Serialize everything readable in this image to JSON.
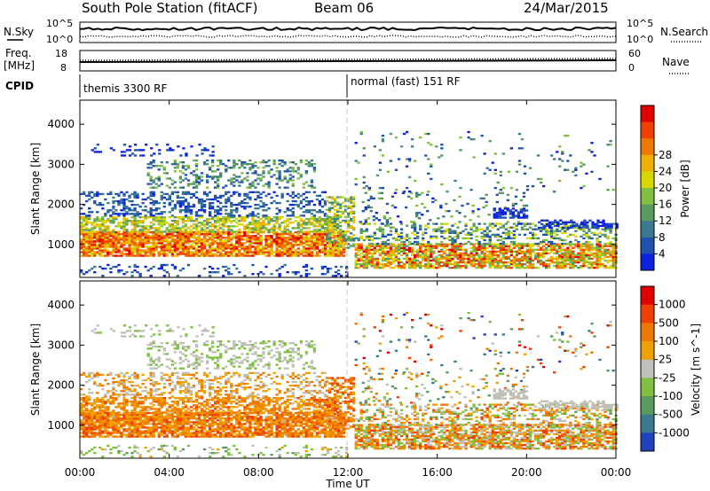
{
  "header": {
    "station": "South Pole Station (fitACF)",
    "beam": "Beam 06",
    "date": "24/Mar/2015"
  },
  "top_panels": {
    "nsky_label": "N.Sky",
    "nsky_ticks": [
      "10^5",
      "10^0"
    ],
    "nsearch_label": "N.Search",
    "nsearch_ticks": [
      "10^5",
      "10^0"
    ],
    "freq_label": "Freq.",
    "freq_unit": "[MHz]",
    "freq_ticks": [
      "18",
      "8"
    ],
    "nave_label": "Nave",
    "nave_ticks": [
      "60",
      "0"
    ],
    "cpid_label": "CPID",
    "cpid_modes": [
      "themis 3300 RF",
      "normal (fast) 151 RF"
    ]
  },
  "chart_data": [
    {
      "type": "heatmap",
      "title": "",
      "xlabel": "Time UT",
      "ylabel": "Slant Range [km]",
      "x_ticks": [
        "00:00",
        "04:00",
        "08:00",
        "12:00",
        "16:00",
        "20:00",
        "00:00"
      ],
      "y_ticks": [
        "1000",
        "2000",
        "3000",
        "4000"
      ],
      "xlim": [
        0,
        24
      ],
      "ylim": [
        180,
        4600
      ],
      "colorbar": {
        "label": "Power [dB]",
        "ticks": [
          "4",
          "8",
          "12",
          "16",
          "20",
          "24",
          "28"
        ],
        "colors": [
          "#1020e0",
          "#2050b0",
          "#3a7a90",
          "#5a9a60",
          "#80c040",
          "#d8d800",
          "#f0b000",
          "#f07800",
          "#f04000",
          "#e00000"
        ]
      }
    },
    {
      "type": "heatmap",
      "title": "",
      "xlabel": "Time UT",
      "ylabel": "Slant Range [km]",
      "x_ticks": [
        "00:00",
        "04:00",
        "08:00",
        "12:00",
        "16:00",
        "20:00",
        "00:00"
      ],
      "y_ticks": [
        "1000",
        "2000",
        "3000",
        "4000"
      ],
      "xlim": [
        0,
        24
      ],
      "ylim": [
        180,
        4600
      ],
      "colorbar": {
        "label": "Velocity [m s^-1]",
        "ticks": [
          "1000",
          "500",
          "100",
          "25",
          "-25",
          "-100",
          "-500",
          "-1000"
        ],
        "colors": [
          "#2040c0",
          "#3a7a90",
          "#5a9a60",
          "#80c040",
          "#c0c0b8",
          "#f0a000",
          "#f07800",
          "#f04000",
          "#e00000"
        ]
      }
    }
  ]
}
